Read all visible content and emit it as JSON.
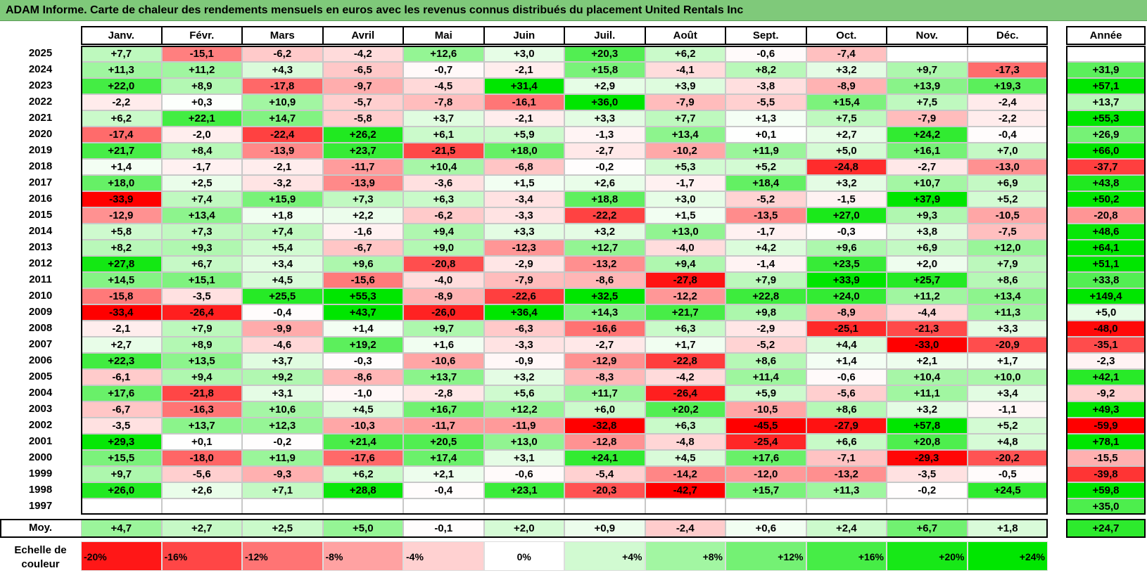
{
  "title": "ADAM Informe. Carte de chaleur des rendements mensuels en euros avec les revenus connus distribués du placement United Rentals Inc",
  "chart_data": {
    "type": "heatmap",
    "months": [
      "Janv.",
      "Févr.",
      "Mars",
      "Avril",
      "Mai",
      "Juin",
      "Juil.",
      "Août",
      "Sept.",
      "Oct.",
      "Nov.",
      "Déc."
    ],
    "year_label": "Année",
    "avg_label": "Moy.",
    "rows": [
      {
        "year": "2025",
        "values": [
          "+7,7",
          "-15,1",
          "-6,2",
          "-4,2",
          "+12,6",
          "+3,0",
          "+20,3",
          "+6,2",
          "-0,6",
          "-7,4",
          "",
          ""
        ],
        "annual": ""
      },
      {
        "year": "2024",
        "values": [
          "+11,3",
          "+11,2",
          "+4,3",
          "-6,5",
          "-0,7",
          "-2,1",
          "+15,8",
          "-4,1",
          "+8,2",
          "+3,2",
          "+9,7",
          "-17,3"
        ],
        "annual": "+31,9"
      },
      {
        "year": "2023",
        "values": [
          "+22,0",
          "+8,9",
          "-17,8",
          "-9,7",
          "-4,5",
          "+31,4",
          "+2,9",
          "+3,9",
          "-3,8",
          "-8,9",
          "+13,9",
          "+19,3"
        ],
        "annual": "+57,1"
      },
      {
        "year": "2022",
        "values": [
          "-2,2",
          "+0,3",
          "+10,9",
          "-5,7",
          "-7,8",
          "-16,1",
          "+36,0",
          "-7,9",
          "-5,5",
          "+15,4",
          "+7,5",
          "-2,4"
        ],
        "annual": "+13,7"
      },
      {
        "year": "2021",
        "values": [
          "+6,2",
          "+22,1",
          "+14,7",
          "-5,8",
          "+3,7",
          "-2,1",
          "+3,3",
          "+7,7",
          "+1,3",
          "+7,5",
          "-7,9",
          "-2,2"
        ],
        "annual": "+55,3"
      },
      {
        "year": "2020",
        "values": [
          "-17,4",
          "-2,0",
          "-22,4",
          "+26,2",
          "+6,1",
          "+5,9",
          "-1,3",
          "+13,4",
          "+0,1",
          "+2,7",
          "+24,2",
          "-0,4"
        ],
        "annual": "+26,9"
      },
      {
        "year": "2019",
        "values": [
          "+21,7",
          "+8,4",
          "-13,9",
          "+23,7",
          "-21,5",
          "+18,0",
          "-2,7",
          "-10,2",
          "+11,9",
          "+5,0",
          "+16,1",
          "+7,0"
        ],
        "annual": "+66,0"
      },
      {
        "year": "2018",
        "values": [
          "+1,4",
          "-1,7",
          "-2,1",
          "-11,7",
          "+10,4",
          "-6,8",
          "-0,2",
          "+5,3",
          "+5,2",
          "-24,8",
          "-2,7",
          "-13,0"
        ],
        "annual": "-37,7"
      },
      {
        "year": "2017",
        "values": [
          "+18,0",
          "+2,5",
          "-3,2",
          "-13,9",
          "-3,6",
          "+1,5",
          "+2,6",
          "-1,7",
          "+18,4",
          "+3,2",
          "+10,7",
          "+6,9"
        ],
        "annual": "+43,8"
      },
      {
        "year": "2016",
        "values": [
          "-33,9",
          "+7,4",
          "+15,9",
          "+7,3",
          "+6,3",
          "-3,4",
          "+18,8",
          "+3,0",
          "-5,2",
          "-1,5",
          "+37,9",
          "+5,2"
        ],
        "annual": "+50,2"
      },
      {
        "year": "2015",
        "values": [
          "-12,9",
          "+13,4",
          "+1,8",
          "+2,2",
          "-6,2",
          "-3,3",
          "-22,2",
          "+1,5",
          "-13,5",
          "+27,0",
          "+9,3",
          "-10,5"
        ],
        "annual": "-20,8"
      },
      {
        "year": "2014",
        "values": [
          "+5,8",
          "+7,3",
          "+7,4",
          "-1,6",
          "+9,4",
          "+3,3",
          "+3,2",
          "+13,0",
          "-1,7",
          "-0,3",
          "+3,8",
          "-7,5"
        ],
        "annual": "+48,6"
      },
      {
        "year": "2013",
        "values": [
          "+8,2",
          "+9,3",
          "+5,4",
          "-6,7",
          "+9,0",
          "-12,3",
          "+12,7",
          "-4,0",
          "+4,2",
          "+9,6",
          "+6,9",
          "+12,0"
        ],
        "annual": "+64,1"
      },
      {
        "year": "2012",
        "values": [
          "+27,8",
          "+6,7",
          "+3,4",
          "+9,6",
          "-20,8",
          "-2,9",
          "-13,2",
          "+9,4",
          "-1,4",
          "+23,5",
          "+2,0",
          "+7,9"
        ],
        "annual": "+51,1"
      },
      {
        "year": "2011",
        "values": [
          "+14,5",
          "+15,1",
          "+4,5",
          "-15,6",
          "-4,0",
          "-7,9",
          "-8,6",
          "-27,8",
          "+7,9",
          "+33,9",
          "+25,7",
          "+8,6"
        ],
        "annual": "+33,8"
      },
      {
        "year": "2010",
        "values": [
          "-15,8",
          "-3,5",
          "+25,5",
          "+55,3",
          "-8,9",
          "-22,6",
          "+32,5",
          "-12,2",
          "+22,8",
          "+24,0",
          "+11,2",
          "+13,4"
        ],
        "annual": "+149,4"
      },
      {
        "year": "2009",
        "values": [
          "-33,4",
          "-26,4",
          "-0,4",
          "+43,7",
          "-26,0",
          "+36,4",
          "+14,3",
          "+21,7",
          "+9,8",
          "-8,9",
          "-4,4",
          "+11,3"
        ],
        "annual": "+5,0"
      },
      {
        "year": "2008",
        "values": [
          "-2,1",
          "+7,9",
          "-9,9",
          "+1,4",
          "+9,7",
          "-6,3",
          "-16,6",
          "+6,3",
          "-2,9",
          "-25,1",
          "-21,3",
          "+3,3"
        ],
        "annual": "-48,0"
      },
      {
        "year": "2007",
        "values": [
          "+2,7",
          "+8,9",
          "-4,6",
          "+19,2",
          "+1,6",
          "-3,3",
          "-2,7",
          "+1,7",
          "-5,2",
          "+4,4",
          "-33,0",
          "-20,9"
        ],
        "annual": "-35,1"
      },
      {
        "year": "2006",
        "values": [
          "+22,3",
          "+13,5",
          "+3,7",
          "-0,3",
          "-10,6",
          "-0,9",
          "-12,9",
          "-22,8",
          "+8,6",
          "+1,4",
          "+2,1",
          "+1,7"
        ],
        "annual": "-2,3"
      },
      {
        "year": "2005",
        "values": [
          "-6,1",
          "+9,4",
          "+9,2",
          "-8,6",
          "+13,7",
          "+3,2",
          "-8,3",
          "-4,2",
          "+11,4",
          "-0,6",
          "+10,4",
          "+10,0"
        ],
        "annual": "+42,1"
      },
      {
        "year": "2004",
        "values": [
          "+17,6",
          "-21,8",
          "+3,1",
          "-1,0",
          "-2,8",
          "+5,6",
          "+11,7",
          "-26,4",
          "+5,9",
          "-5,6",
          "+11,1",
          "+3,4"
        ],
        "annual": "-9,2"
      },
      {
        "year": "2003",
        "values": [
          "-6,7",
          "-16,3",
          "+10,6",
          "+4,5",
          "+16,7",
          "+12,2",
          "+6,0",
          "+20,2",
          "-10,5",
          "+8,6",
          "+3,2",
          "-1,1"
        ],
        "annual": "+49,3"
      },
      {
        "year": "2002",
        "values": [
          "-3,5",
          "+13,7",
          "+12,3",
          "-10,3",
          "-11,7",
          "-11,9",
          "-32,8",
          "+6,3",
          "-45,5",
          "-27,9",
          "+57,8",
          "+5,2"
        ],
        "annual": "-59,9"
      },
      {
        "year": "2001",
        "values": [
          "+29,3",
          "+0,1",
          "-0,2",
          "+21,4",
          "+20,5",
          "+13,0",
          "-12,8",
          "-4,8",
          "-25,4",
          "+6,6",
          "+20,8",
          "+4,8"
        ],
        "annual": "+78,1"
      },
      {
        "year": "2000",
        "values": [
          "+15,5",
          "-18,0",
          "+11,9",
          "-17,6",
          "+17,4",
          "+3,1",
          "+24,1",
          "+4,5",
          "+17,6",
          "-7,1",
          "-29,3",
          "-20,2"
        ],
        "annual": "-15,5"
      },
      {
        "year": "1999",
        "values": [
          "+9,7",
          "-5,6",
          "-9,3",
          "+6,2",
          "+2,1",
          "-0,6",
          "-5,4",
          "-14,2",
          "-12,0",
          "-13,2",
          "-3,5",
          "-0,5"
        ],
        "annual": "-39,8"
      },
      {
        "year": "1998",
        "values": [
          "+26,0",
          "+2,6",
          "+7,1",
          "+28,8",
          "-0,4",
          "+23,1",
          "-20,3",
          "-42,7",
          "+15,7",
          "+11,3",
          "-0,2",
          "+24,5"
        ],
        "annual": "+59,8"
      },
      {
        "year": "1997",
        "values": [
          "",
          "",
          "",
          "",
          "",
          "",
          "",
          "",
          "",
          "",
          "",
          ""
        ],
        "annual": "+35,0"
      }
    ],
    "averages": [
      "+4,7",
      "+2,7",
      "+2,5",
      "+5,0",
      "-0,1",
      "+2,0",
      "+0,9",
      "-2,4",
      "+0,6",
      "+2,4",
      "+6,7",
      "+1,8"
    ],
    "average_annual": "+24,7",
    "scale_label": "Echelle de couleur",
    "scale": [
      "-20%",
      "-16%",
      "-12%",
      "-8%",
      "-4%",
      "0%",
      "+4%",
      "+8%",
      "+12%",
      "+16%",
      "+20%",
      "+24%"
    ],
    "colors": {
      "neg_max": "#ff0000",
      "zero": "#ffffff",
      "pos_max": "#00e600",
      "title_bg": "#7fc97a"
    }
  }
}
